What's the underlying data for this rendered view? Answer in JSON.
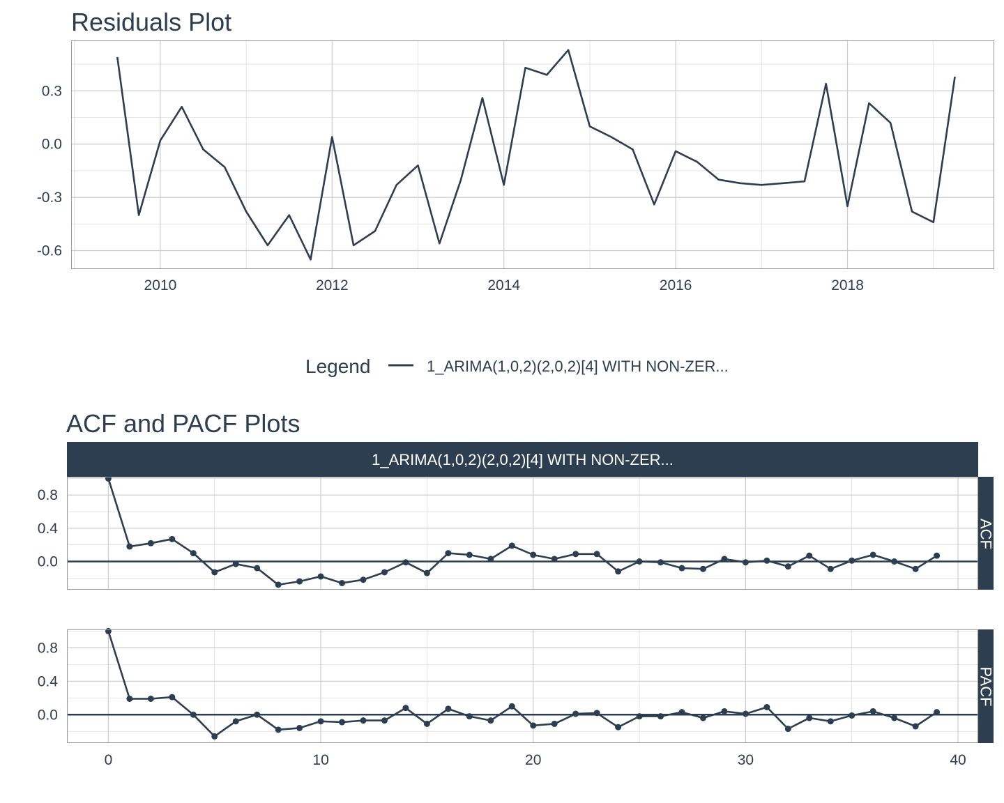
{
  "colors": {
    "line": "#2c3e50",
    "strip_bg": "#2c3e50",
    "strip_text": "#ffffff",
    "grid_major": "#cccccc",
    "grid_minor": "#dddddd",
    "panel_border": "#999999",
    "text": "#2c3e50"
  },
  "chart_data": [
    {
      "type": "line",
      "title": "Residuals Plot",
      "xlabel": "",
      "ylabel": "",
      "xlim": [
        2008.97,
        2019.7
      ],
      "ylim": [
        -0.7,
        0.58
      ],
      "x_ticks": [
        2010,
        2012,
        2014,
        2016,
        2018
      ],
      "x_tick_labels": [
        "2010",
        "2012",
        "2014",
        "2016",
        "2018"
      ],
      "y_ticks": [
        -0.6,
        -0.3,
        0.0,
        0.3
      ],
      "y_tick_labels": [
        "-0.6",
        "-0.3",
        "0.0",
        "0.3"
      ],
      "grid": true,
      "series": [
        {
          "name": "1_ARIMA(1,0,2)(2,0,2)[4] WITH NON-ZER...",
          "x": [
            2009.5,
            2009.75,
            2010.0,
            2010.25,
            2010.5,
            2010.75,
            2011.0,
            2011.25,
            2011.5,
            2011.75,
            2012.0,
            2012.25,
            2012.5,
            2012.75,
            2013.0,
            2013.25,
            2013.5,
            2013.75,
            2014.0,
            2014.25,
            2014.5,
            2014.75,
            2015.0,
            2015.25,
            2015.5,
            2015.75,
            2016.0,
            2016.25,
            2016.5,
            2016.75,
            2017.0,
            2017.25,
            2017.5,
            2017.75,
            2018.0,
            2018.25,
            2018.5,
            2018.75,
            2019.0,
            2019.25
          ],
          "y": [
            0.49,
            -0.4,
            0.02,
            0.21,
            -0.03,
            -0.13,
            -0.38,
            -0.57,
            -0.4,
            -0.65,
            0.04,
            -0.57,
            -0.49,
            -0.23,
            -0.12,
            -0.56,
            -0.2,
            0.26,
            -0.23,
            0.43,
            0.39,
            0.53,
            0.1,
            0.04,
            -0.03,
            -0.34,
            -0.04,
            -0.1,
            -0.2,
            -0.22,
            -0.23,
            -0.22,
            -0.21,
            0.34,
            -0.35,
            0.23,
            0.12,
            -0.38,
            -0.44,
            0.38
          ]
        }
      ],
      "legend": {
        "title": "Legend",
        "placement": "bottom",
        "entries": [
          "1_ARIMA(1,0,2)(2,0,2)[4] WITH NON-ZER..."
        ]
      }
    },
    {
      "type": "line",
      "title": "ACF and PACF Plots",
      "strip_label": "1_ARIMA(1,0,2)(2,0,2)[4] WITH NON-ZER...",
      "xlabel": "",
      "ylabel": "",
      "xlim": [
        -1.95,
        40.95
      ],
      "x_ticks": [
        0,
        10,
        20,
        30,
        40
      ],
      "x_tick_labels": [
        "0",
        "10",
        "20",
        "30",
        "40"
      ],
      "grid": true,
      "facets": [
        {
          "name": "ACF",
          "ylim": [
            -0.34,
            1.02
          ],
          "y_ticks": [
            0.0,
            0.4,
            0.8
          ],
          "y_tick_labels": [
            "0.0",
            "0.4",
            "0.8"
          ],
          "x": [
            0,
            1,
            2,
            3,
            4,
            5,
            6,
            7,
            8,
            9,
            10,
            11,
            12,
            13,
            14,
            15,
            16,
            17,
            18,
            19,
            20,
            21,
            22,
            23,
            24,
            25,
            26,
            27,
            28,
            29,
            30,
            31,
            32,
            33,
            34,
            35,
            36,
            37,
            38,
            39
          ],
          "y": [
            1.0,
            0.18,
            0.22,
            0.27,
            0.1,
            -0.13,
            -0.03,
            -0.08,
            -0.28,
            -0.24,
            -0.18,
            -0.26,
            -0.22,
            -0.13,
            -0.01,
            -0.14,
            0.1,
            0.08,
            0.03,
            0.19,
            0.08,
            0.03,
            0.09,
            0.09,
            -0.12,
            0.0,
            -0.01,
            -0.08,
            -0.09,
            0.03,
            -0.01,
            0.01,
            -0.06,
            0.07,
            -0.09,
            0.01,
            0.08,
            0.0,
            -0.09,
            0.07
          ]
        },
        {
          "name": "PACF",
          "ylim": [
            -0.34,
            1.02
          ],
          "y_ticks": [
            0.0,
            0.4,
            0.8
          ],
          "y_tick_labels": [
            "0.0",
            "0.4",
            "0.8"
          ],
          "x": [
            0,
            1,
            2,
            3,
            4,
            5,
            6,
            7,
            8,
            9,
            10,
            11,
            12,
            13,
            14,
            15,
            16,
            17,
            18,
            19,
            20,
            21,
            22,
            23,
            24,
            25,
            26,
            27,
            28,
            29,
            30,
            31,
            32,
            33,
            34,
            35,
            36,
            37,
            38,
            39
          ],
          "y": [
            1.0,
            0.19,
            0.19,
            0.21,
            0.0,
            -0.26,
            -0.08,
            0.0,
            -0.18,
            -0.16,
            -0.08,
            -0.09,
            -0.07,
            -0.07,
            0.08,
            -0.11,
            0.07,
            -0.02,
            -0.07,
            0.1,
            -0.13,
            -0.11,
            0.01,
            0.02,
            -0.15,
            -0.02,
            -0.02,
            0.03,
            -0.04,
            0.04,
            0.01,
            0.09,
            -0.17,
            -0.04,
            -0.08,
            -0.01,
            0.04,
            -0.04,
            -0.14,
            0.03
          ]
        }
      ]
    }
  ]
}
